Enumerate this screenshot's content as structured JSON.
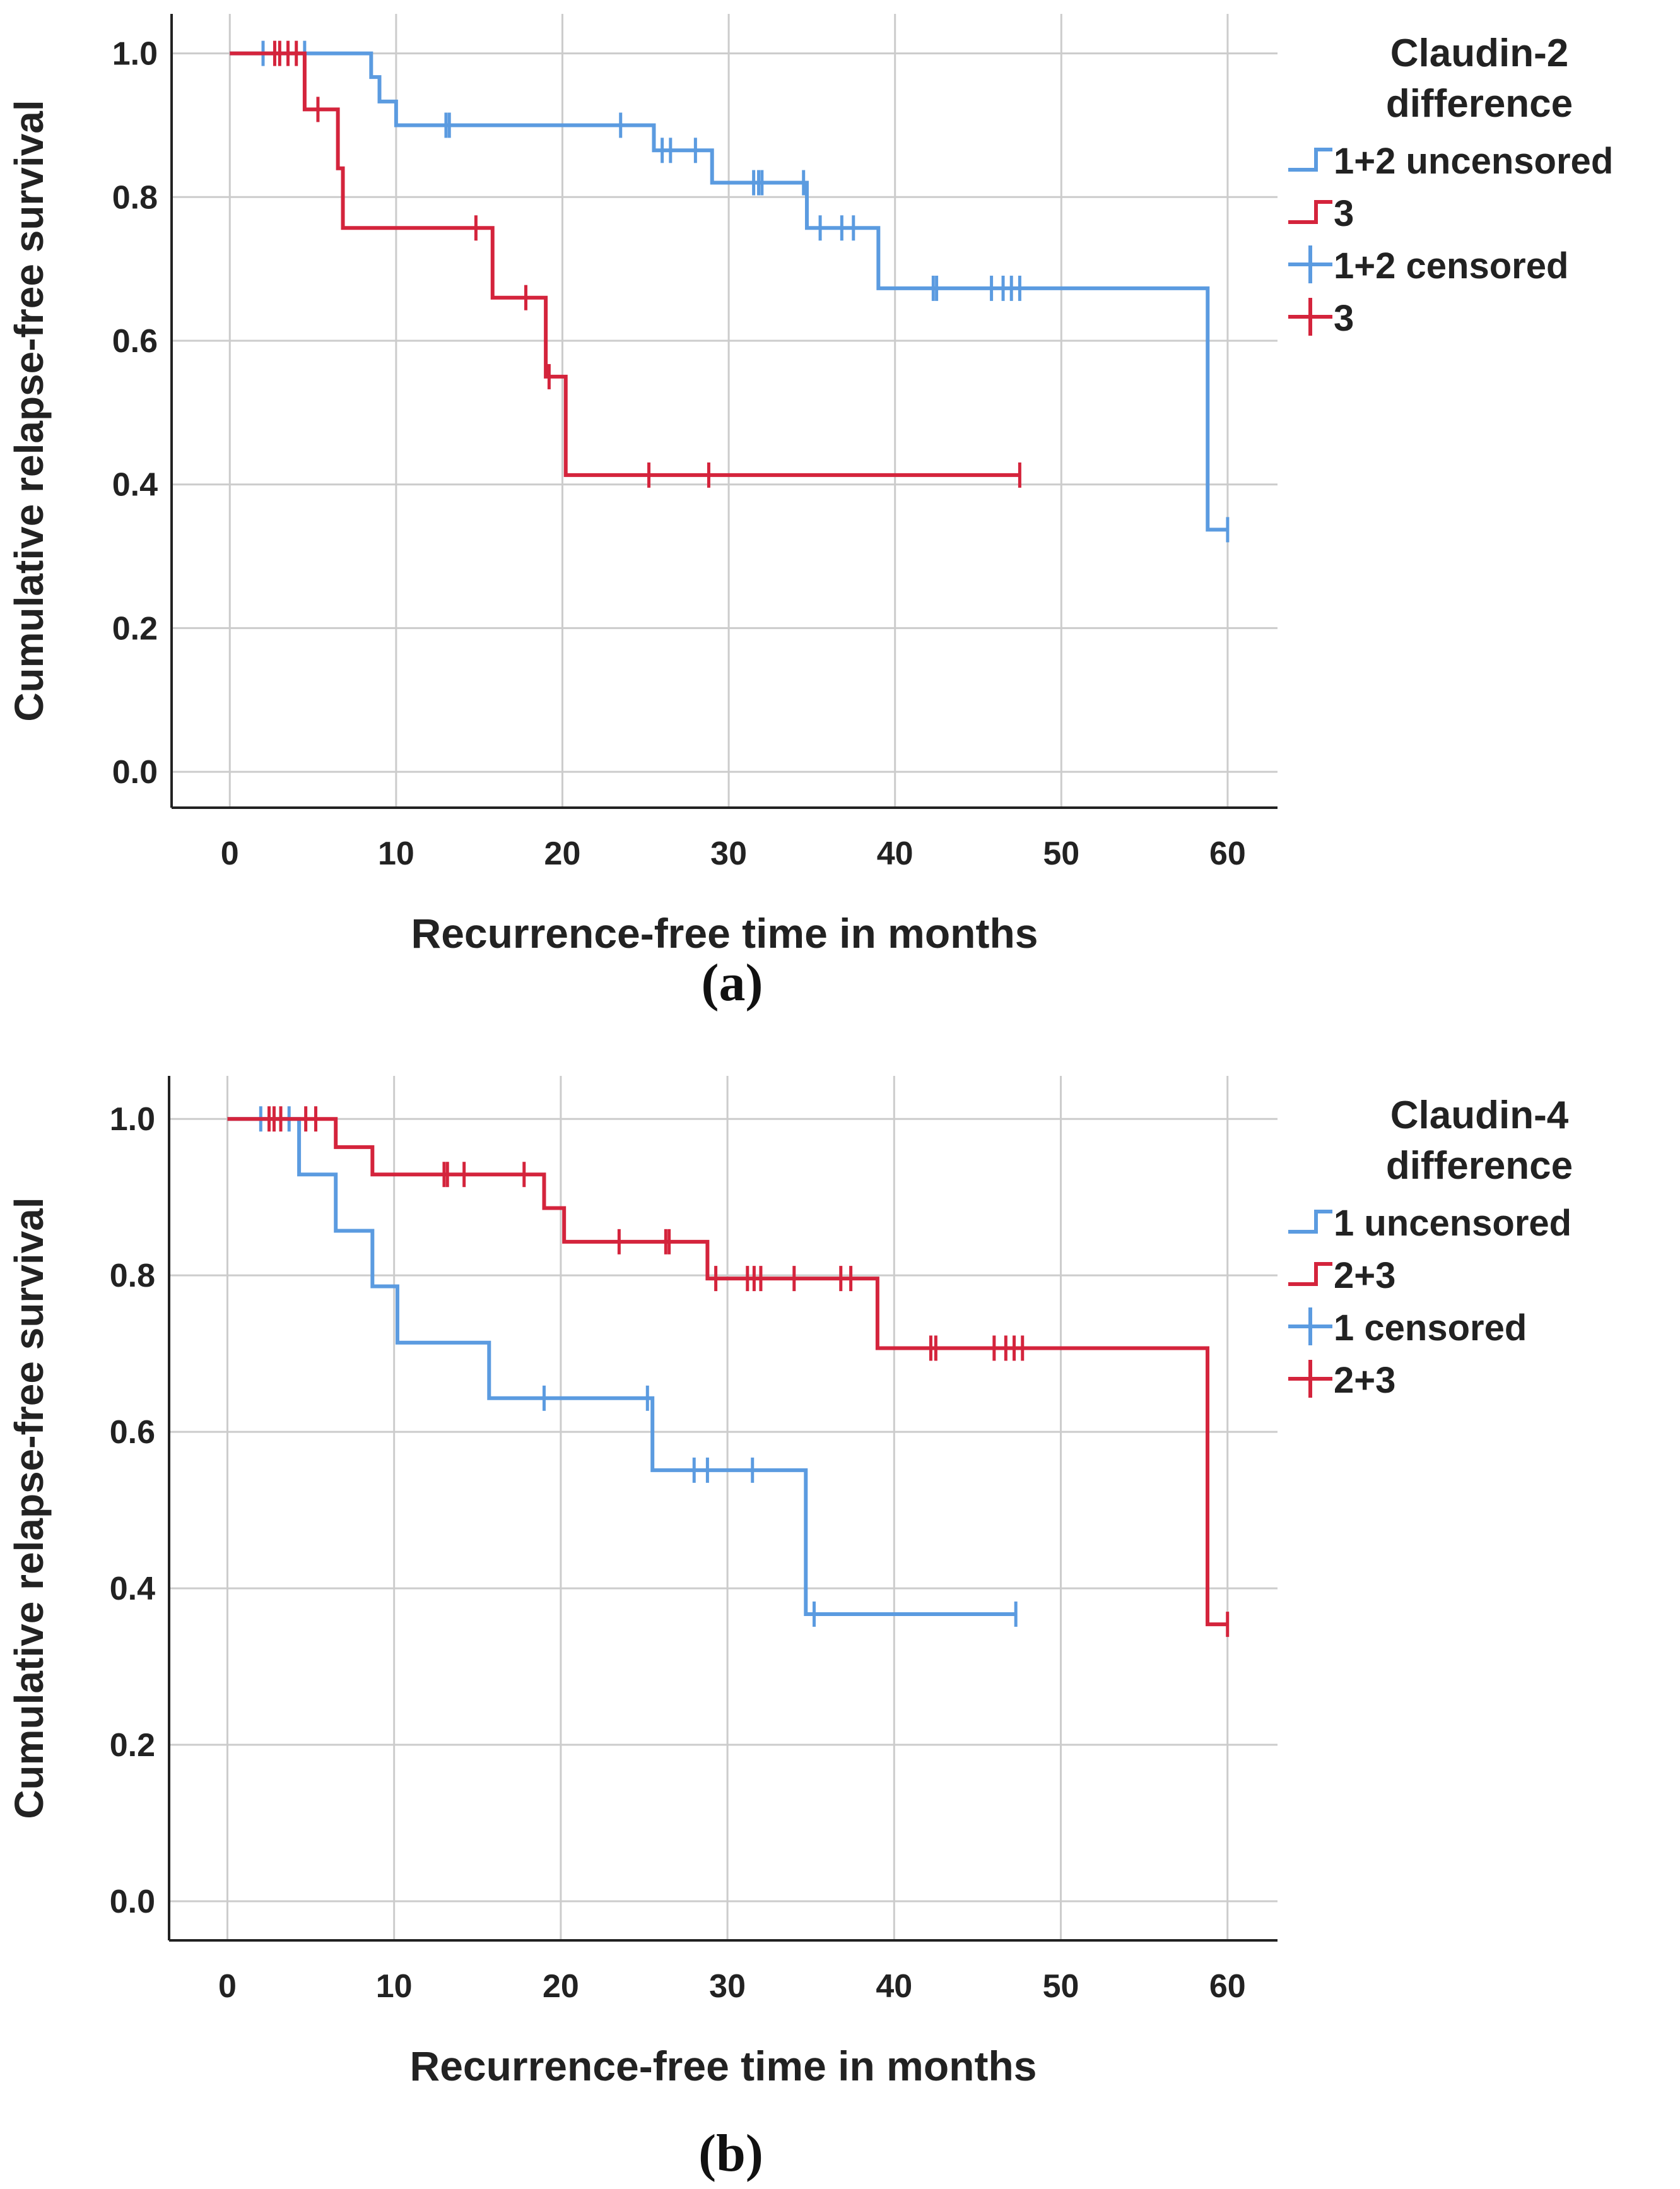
{
  "colors": {
    "blue": "#5b9be0",
    "red": "#d4243c",
    "grid": "#cccccc",
    "axis": "#222222"
  },
  "chart_data": [
    {
      "type": "line",
      "panel_label": "(a)",
      "title": "",
      "xlabel": "Recurrence-free time in months",
      "ylabel": "Cumulative relapse-free survival",
      "xlim": [
        -3.5,
        63
      ],
      "ylim": [
        -0.05,
        1.055
      ],
      "xticks": [
        0,
        10,
        20,
        30,
        40,
        50,
        60
      ],
      "yticks": [
        0.0,
        0.2,
        0.4,
        0.6,
        0.8,
        1.0
      ],
      "ytick_labels": [
        "0.0",
        "0.2",
        "0.4",
        "0.6",
        "0.8",
        "1.0"
      ],
      "grid": true,
      "legend_position": "right",
      "legend": {
        "title_line1": "Claudin-2",
        "title_line2": "difference",
        "entries": [
          "1+2 uncensored",
          "3",
          "1+2 censored",
          "3"
        ]
      },
      "series": [
        {
          "name": "1+2",
          "color": "blue",
          "end": 60,
          "steps": [
            [
              0,
              1.0
            ],
            [
              8.5,
              0.967
            ],
            [
              9,
              0.933
            ],
            [
              10,
              0.9
            ],
            [
              25.5,
              0.865
            ],
            [
              29,
              0.82
            ],
            [
              34.7,
              0.757
            ],
            [
              39,
              0.673
            ],
            [
              58.8,
              0.337
            ]
          ],
          "censored": [
            2,
            4.5,
            13,
            13.2,
            23.5,
            26,
            26.5,
            28,
            31.5,
            31.8,
            32,
            34.5,
            35.5,
            36.8,
            37.5,
            42.3,
            42.5,
            45.8,
            46.5,
            47,
            47.5,
            60
          ]
        },
        {
          "name": "3",
          "color": "red",
          "end": 47.5,
          "steps": [
            [
              0,
              1.0
            ],
            [
              4.5,
              0.922
            ],
            [
              6.5,
              0.84
            ],
            [
              6.8,
              0.757
            ],
            [
              15.8,
              0.66
            ],
            [
              19,
              0.55
            ],
            [
              20.2,
              0.413
            ]
          ],
          "censored": [
            2.7,
            3,
            3.5,
            4,
            5.3,
            14.8,
            17.8,
            19.2,
            25.2,
            28.8,
            47.5
          ]
        }
      ]
    },
    {
      "type": "line",
      "panel_label": "(b)",
      "title": "",
      "xlabel": "Recurrence-free time in months",
      "ylabel": "Cumulative relapse-free survival",
      "xlim": [
        -3.5,
        63
      ],
      "ylim": [
        -0.05,
        1.055
      ],
      "xticks": [
        0,
        10,
        20,
        30,
        40,
        50,
        60
      ],
      "yticks": [
        0.0,
        0.2,
        0.4,
        0.6,
        0.8,
        1.0
      ],
      "ytick_labels": [
        "0.0",
        "0.2",
        "0.4",
        "0.6",
        "0.8",
        "1.0"
      ],
      "grid": true,
      "legend_position": "right",
      "legend": {
        "title_line1": "Claudin-4",
        "title_line2": "difference",
        "entries": [
          "1 uncensored",
          "2+3",
          "1 censored",
          "2+3"
        ]
      },
      "series": [
        {
          "name": "1",
          "color": "blue",
          "end": 47.3,
          "steps": [
            [
              0,
              1.0
            ],
            [
              4.3,
              0.929
            ],
            [
              6.5,
              0.857
            ],
            [
              8.7,
              0.786
            ],
            [
              10.2,
              0.714
            ],
            [
              15.7,
              0.643
            ],
            [
              25.5,
              0.551
            ],
            [
              34.7,
              0.367
            ]
          ],
          "censored": [
            2,
            3.7,
            19,
            25.2,
            28,
            28.8,
            31.5,
            35.2,
            47.3
          ]
        },
        {
          "name": "2+3",
          "color": "red",
          "end": 60,
          "steps": [
            [
              0,
              1.0
            ],
            [
              4.5,
              1.0
            ],
            [
              6.5,
              0.964
            ],
            [
              8.7,
              0.929
            ],
            [
              19,
              0.886
            ],
            [
              20.2,
              0.843
            ],
            [
              28.8,
              0.796
            ],
            [
              39,
              0.707
            ],
            [
              58.8,
              0.354
            ]
          ],
          "censored": [
            2.5,
            2.8,
            3.2,
            4.7,
            5.3,
            13,
            13.2,
            14.2,
            17.8,
            23.5,
            26.3,
            26.5,
            29.3,
            31.2,
            31.6,
            32,
            34,
            36.8,
            37.4,
            42.2,
            42.5,
            46,
            46.7,
            47.2,
            47.7,
            60
          ]
        }
      ]
    }
  ]
}
